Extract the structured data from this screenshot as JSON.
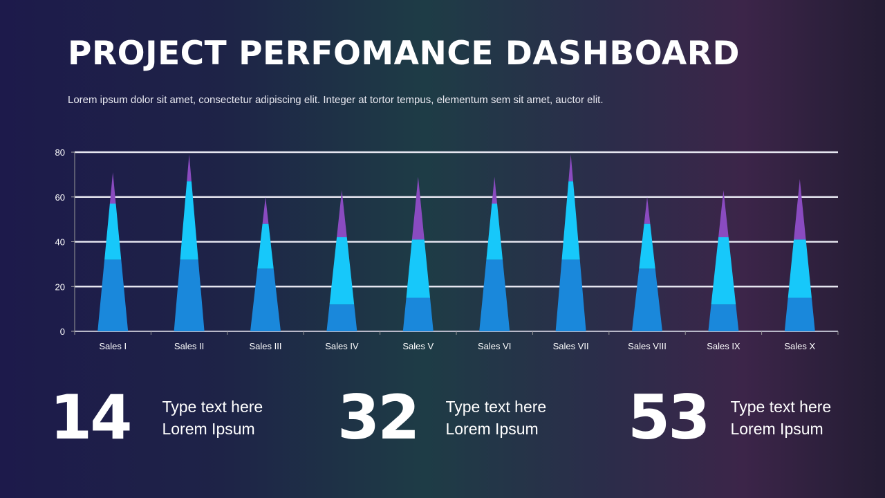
{
  "title": "PROJECT PERFOMANCE DASHBOARD",
  "subtitle": "Lorem ipsum dolor sit amet, consectetur adipiscing elit. Integer at tortor tempus, elementum sem sit amet, auctor elit.",
  "chart_data": {
    "type": "bar",
    "stacked": true,
    "shape": "cone",
    "categories": [
      "Sales I",
      "Sales II",
      "Sales III",
      "Sales IV",
      "Sales V",
      "Sales VI",
      "Sales VII",
      "Sales VIII",
      "Sales IX",
      "Sales X"
    ],
    "series": [
      {
        "color": "#1a88db",
        "values": [
          32,
          32,
          28,
          12,
          15,
          32,
          32,
          28,
          12,
          15
        ]
      },
      {
        "color": "#17c8fa",
        "values": [
          25,
          35,
          20,
          30,
          26,
          25,
          35,
          20,
          30,
          26
        ]
      },
      {
        "color": "#8a4bc0",
        "values": [
          14,
          12,
          12,
          21,
          28,
          12,
          12,
          12,
          21,
          27
        ]
      }
    ],
    "ylim": [
      0,
      80
    ],
    "yticks": [
      0,
      20,
      40,
      60,
      80
    ],
    "grid": true,
    "legend": "none"
  },
  "stats": [
    {
      "value": "14",
      "line1": "Type text here",
      "line2": "Lorem Ipsum"
    },
    {
      "value": "32",
      "line1": "Type text here",
      "line2": "Lorem Ipsum"
    },
    {
      "value": "53",
      "line1": "Type text here",
      "line2": "Lorem Ipsum"
    }
  ]
}
